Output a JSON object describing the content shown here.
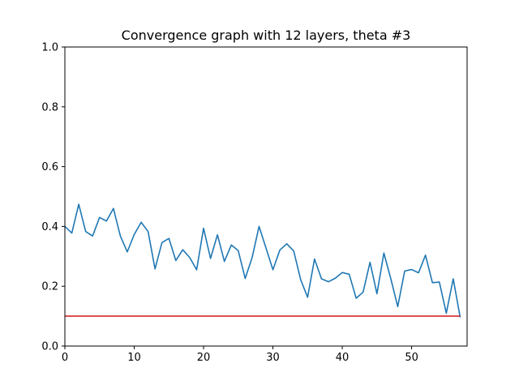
{
  "chart_data": {
    "type": "line",
    "title": "Convergence graph with 12 layers, theta #3",
    "xlabel": "",
    "ylabel": "",
    "xlim": [
      0,
      58
    ],
    "ylim": [
      0,
      1.0
    ],
    "x_ticks": [
      0,
      10,
      20,
      30,
      40,
      50
    ],
    "y_ticks": [
      0.0,
      0.2,
      0.4,
      0.6,
      0.8,
      1.0
    ],
    "x_tick_labels": [
      "0",
      "10",
      "20",
      "30",
      "40",
      "50"
    ],
    "y_tick_labels": [
      "0.0",
      "0.2",
      "0.4",
      "0.6",
      "0.8",
      "1.0"
    ],
    "grid": false,
    "series": [
      {
        "color": "#1f77b4",
        "x": [
          0,
          1,
          2,
          3,
          4,
          5,
          6,
          7,
          8,
          9,
          10,
          11,
          12,
          13,
          14,
          15,
          16,
          17,
          18,
          19,
          20,
          21,
          22,
          23,
          24,
          25,
          26,
          27,
          28,
          29,
          30,
          31,
          32,
          33,
          34,
          35,
          36,
          37,
          38,
          39,
          40,
          41,
          42,
          43,
          44,
          45,
          46,
          47,
          48,
          49,
          50,
          51,
          52,
          53,
          54,
          55,
          56,
          57
        ],
        "y": [
          0.4,
          0.378,
          0.474,
          0.383,
          0.368,
          0.43,
          0.418,
          0.46,
          0.368,
          0.315,
          0.373,
          0.414,
          0.383,
          0.258,
          0.346,
          0.36,
          0.286,
          0.322,
          0.296,
          0.255,
          0.394,
          0.293,
          0.372,
          0.283,
          0.338,
          0.319,
          0.226,
          0.296,
          0.4,
          0.328,
          0.255,
          0.321,
          0.342,
          0.318,
          0.222,
          0.163,
          0.291,
          0.225,
          0.215,
          0.227,
          0.246,
          0.24,
          0.16,
          0.18,
          0.28,
          0.175,
          0.311,
          0.225,
          0.132,
          0.251,
          0.256,
          0.245,
          0.304,
          0.212,
          0.214,
          0.11,
          0.225,
          0.096
        ]
      },
      {
        "color": "#d62728",
        "x": [
          0,
          57
        ],
        "y": [
          0.1,
          0.1
        ]
      }
    ]
  }
}
